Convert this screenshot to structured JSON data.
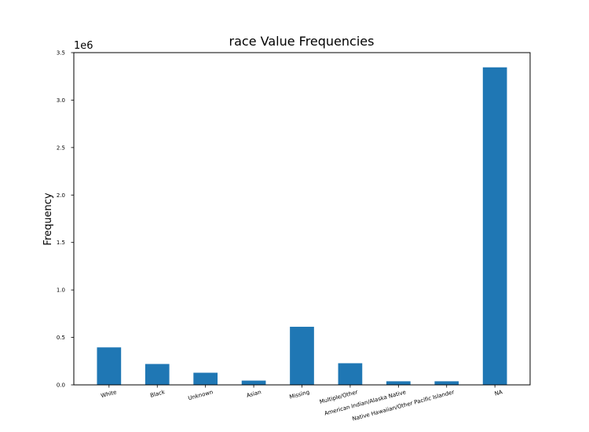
{
  "chart_data": {
    "type": "bar",
    "title": "race Value Frequencies",
    "xlabel": "",
    "ylabel": "Frequency",
    "y_offset_label": "1e6",
    "y_scale": 1000000,
    "ylim": [
      0,
      3.5
    ],
    "yticks": [
      "0.0",
      "0.5",
      "1.0",
      "1.5",
      "2.0",
      "2.5",
      "3.0",
      "3.5"
    ],
    "categories": [
      "White",
      "Black",
      "Unknown",
      "Asian",
      "Missing",
      "Multiple/Other",
      "American Indian/Alaska Native",
      "Native Hawaiian/Other Pacific Islander",
      "NA"
    ],
    "values": [
      395000,
      220000,
      128000,
      45000,
      612000,
      228000,
      38000,
      38000,
      3345000
    ],
    "bar_color": "#1f77b4",
    "grid": false,
    "legend": "none"
  }
}
